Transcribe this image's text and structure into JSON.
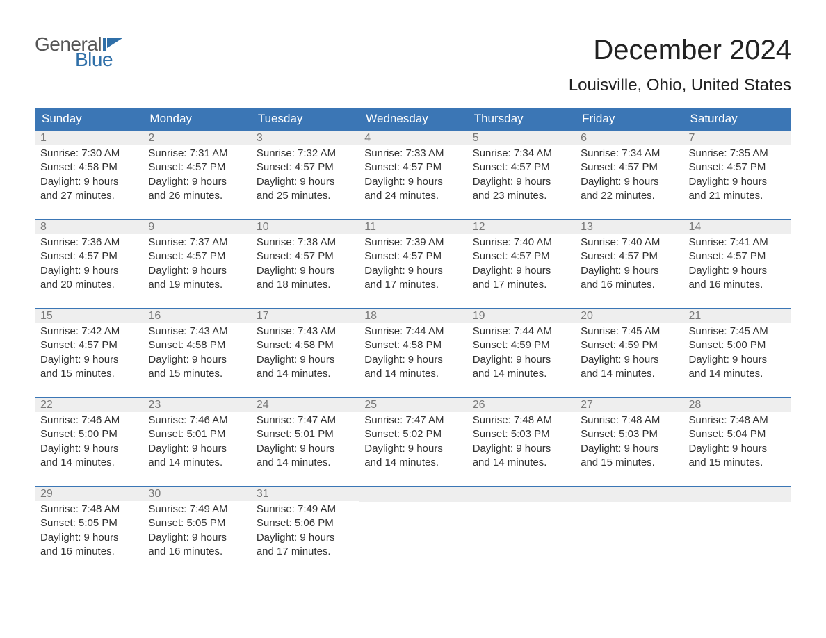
{
  "brand": {
    "part1": "General",
    "part2": "Blue",
    "part1_color": "#555555",
    "part2_color": "#2f6fa8"
  },
  "title": "December 2024",
  "location": "Louisville, Ohio, United States",
  "colors": {
    "header_bg": "#3b76b5",
    "header_text": "#ffffff",
    "daynum_bg": "#eeeeee",
    "daynum_text": "#777777",
    "body_text": "#333333",
    "week_border": "#3b76b5",
    "page_bg": "#ffffff"
  },
  "typography": {
    "title_fontsize": 40,
    "location_fontsize": 24,
    "header_fontsize": 17,
    "daynum_fontsize": 16,
    "body_fontsize": 15
  },
  "day_headers": [
    "Sunday",
    "Monday",
    "Tuesday",
    "Wednesday",
    "Thursday",
    "Friday",
    "Saturday"
  ],
  "weeks": [
    [
      {
        "num": "1",
        "sunrise": "Sunrise: 7:30 AM",
        "sunset": "Sunset: 4:58 PM",
        "day1": "Daylight: 9 hours",
        "day2": "and 27 minutes."
      },
      {
        "num": "2",
        "sunrise": "Sunrise: 7:31 AM",
        "sunset": "Sunset: 4:57 PM",
        "day1": "Daylight: 9 hours",
        "day2": "and 26 minutes."
      },
      {
        "num": "3",
        "sunrise": "Sunrise: 7:32 AM",
        "sunset": "Sunset: 4:57 PM",
        "day1": "Daylight: 9 hours",
        "day2": "and 25 minutes."
      },
      {
        "num": "4",
        "sunrise": "Sunrise: 7:33 AM",
        "sunset": "Sunset: 4:57 PM",
        "day1": "Daylight: 9 hours",
        "day2": "and 24 minutes."
      },
      {
        "num": "5",
        "sunrise": "Sunrise: 7:34 AM",
        "sunset": "Sunset: 4:57 PM",
        "day1": "Daylight: 9 hours",
        "day2": "and 23 minutes."
      },
      {
        "num": "6",
        "sunrise": "Sunrise: 7:34 AM",
        "sunset": "Sunset: 4:57 PM",
        "day1": "Daylight: 9 hours",
        "day2": "and 22 minutes."
      },
      {
        "num": "7",
        "sunrise": "Sunrise: 7:35 AM",
        "sunset": "Sunset: 4:57 PM",
        "day1": "Daylight: 9 hours",
        "day2": "and 21 minutes."
      }
    ],
    [
      {
        "num": "8",
        "sunrise": "Sunrise: 7:36 AM",
        "sunset": "Sunset: 4:57 PM",
        "day1": "Daylight: 9 hours",
        "day2": "and 20 minutes."
      },
      {
        "num": "9",
        "sunrise": "Sunrise: 7:37 AM",
        "sunset": "Sunset: 4:57 PM",
        "day1": "Daylight: 9 hours",
        "day2": "and 19 minutes."
      },
      {
        "num": "10",
        "sunrise": "Sunrise: 7:38 AM",
        "sunset": "Sunset: 4:57 PM",
        "day1": "Daylight: 9 hours",
        "day2": "and 18 minutes."
      },
      {
        "num": "11",
        "sunrise": "Sunrise: 7:39 AM",
        "sunset": "Sunset: 4:57 PM",
        "day1": "Daylight: 9 hours",
        "day2": "and 17 minutes."
      },
      {
        "num": "12",
        "sunrise": "Sunrise: 7:40 AM",
        "sunset": "Sunset: 4:57 PM",
        "day1": "Daylight: 9 hours",
        "day2": "and 17 minutes."
      },
      {
        "num": "13",
        "sunrise": "Sunrise: 7:40 AM",
        "sunset": "Sunset: 4:57 PM",
        "day1": "Daylight: 9 hours",
        "day2": "and 16 minutes."
      },
      {
        "num": "14",
        "sunrise": "Sunrise: 7:41 AM",
        "sunset": "Sunset: 4:57 PM",
        "day1": "Daylight: 9 hours",
        "day2": "and 16 minutes."
      }
    ],
    [
      {
        "num": "15",
        "sunrise": "Sunrise: 7:42 AM",
        "sunset": "Sunset: 4:57 PM",
        "day1": "Daylight: 9 hours",
        "day2": "and 15 minutes."
      },
      {
        "num": "16",
        "sunrise": "Sunrise: 7:43 AM",
        "sunset": "Sunset: 4:58 PM",
        "day1": "Daylight: 9 hours",
        "day2": "and 15 minutes."
      },
      {
        "num": "17",
        "sunrise": "Sunrise: 7:43 AM",
        "sunset": "Sunset: 4:58 PM",
        "day1": "Daylight: 9 hours",
        "day2": "and 14 minutes."
      },
      {
        "num": "18",
        "sunrise": "Sunrise: 7:44 AM",
        "sunset": "Sunset: 4:58 PM",
        "day1": "Daylight: 9 hours",
        "day2": "and 14 minutes."
      },
      {
        "num": "19",
        "sunrise": "Sunrise: 7:44 AM",
        "sunset": "Sunset: 4:59 PM",
        "day1": "Daylight: 9 hours",
        "day2": "and 14 minutes."
      },
      {
        "num": "20",
        "sunrise": "Sunrise: 7:45 AM",
        "sunset": "Sunset: 4:59 PM",
        "day1": "Daylight: 9 hours",
        "day2": "and 14 minutes."
      },
      {
        "num": "21",
        "sunrise": "Sunrise: 7:45 AM",
        "sunset": "Sunset: 5:00 PM",
        "day1": "Daylight: 9 hours",
        "day2": "and 14 minutes."
      }
    ],
    [
      {
        "num": "22",
        "sunrise": "Sunrise: 7:46 AM",
        "sunset": "Sunset: 5:00 PM",
        "day1": "Daylight: 9 hours",
        "day2": "and 14 minutes."
      },
      {
        "num": "23",
        "sunrise": "Sunrise: 7:46 AM",
        "sunset": "Sunset: 5:01 PM",
        "day1": "Daylight: 9 hours",
        "day2": "and 14 minutes."
      },
      {
        "num": "24",
        "sunrise": "Sunrise: 7:47 AM",
        "sunset": "Sunset: 5:01 PM",
        "day1": "Daylight: 9 hours",
        "day2": "and 14 minutes."
      },
      {
        "num": "25",
        "sunrise": "Sunrise: 7:47 AM",
        "sunset": "Sunset: 5:02 PM",
        "day1": "Daylight: 9 hours",
        "day2": "and 14 minutes."
      },
      {
        "num": "26",
        "sunrise": "Sunrise: 7:48 AM",
        "sunset": "Sunset: 5:03 PM",
        "day1": "Daylight: 9 hours",
        "day2": "and 14 minutes."
      },
      {
        "num": "27",
        "sunrise": "Sunrise: 7:48 AM",
        "sunset": "Sunset: 5:03 PM",
        "day1": "Daylight: 9 hours",
        "day2": "and 15 minutes."
      },
      {
        "num": "28",
        "sunrise": "Sunrise: 7:48 AM",
        "sunset": "Sunset: 5:04 PM",
        "day1": "Daylight: 9 hours",
        "day2": "and 15 minutes."
      }
    ],
    [
      {
        "num": "29",
        "sunrise": "Sunrise: 7:48 AM",
        "sunset": "Sunset: 5:05 PM",
        "day1": "Daylight: 9 hours",
        "day2": "and 16 minutes."
      },
      {
        "num": "30",
        "sunrise": "Sunrise: 7:49 AM",
        "sunset": "Sunset: 5:05 PM",
        "day1": "Daylight: 9 hours",
        "day2": "and 16 minutes."
      },
      {
        "num": "31",
        "sunrise": "Sunrise: 7:49 AM",
        "sunset": "Sunset: 5:06 PM",
        "day1": "Daylight: 9 hours",
        "day2": "and 17 minutes."
      },
      {
        "empty": true
      },
      {
        "empty": true
      },
      {
        "empty": true
      },
      {
        "empty": true
      }
    ]
  ]
}
